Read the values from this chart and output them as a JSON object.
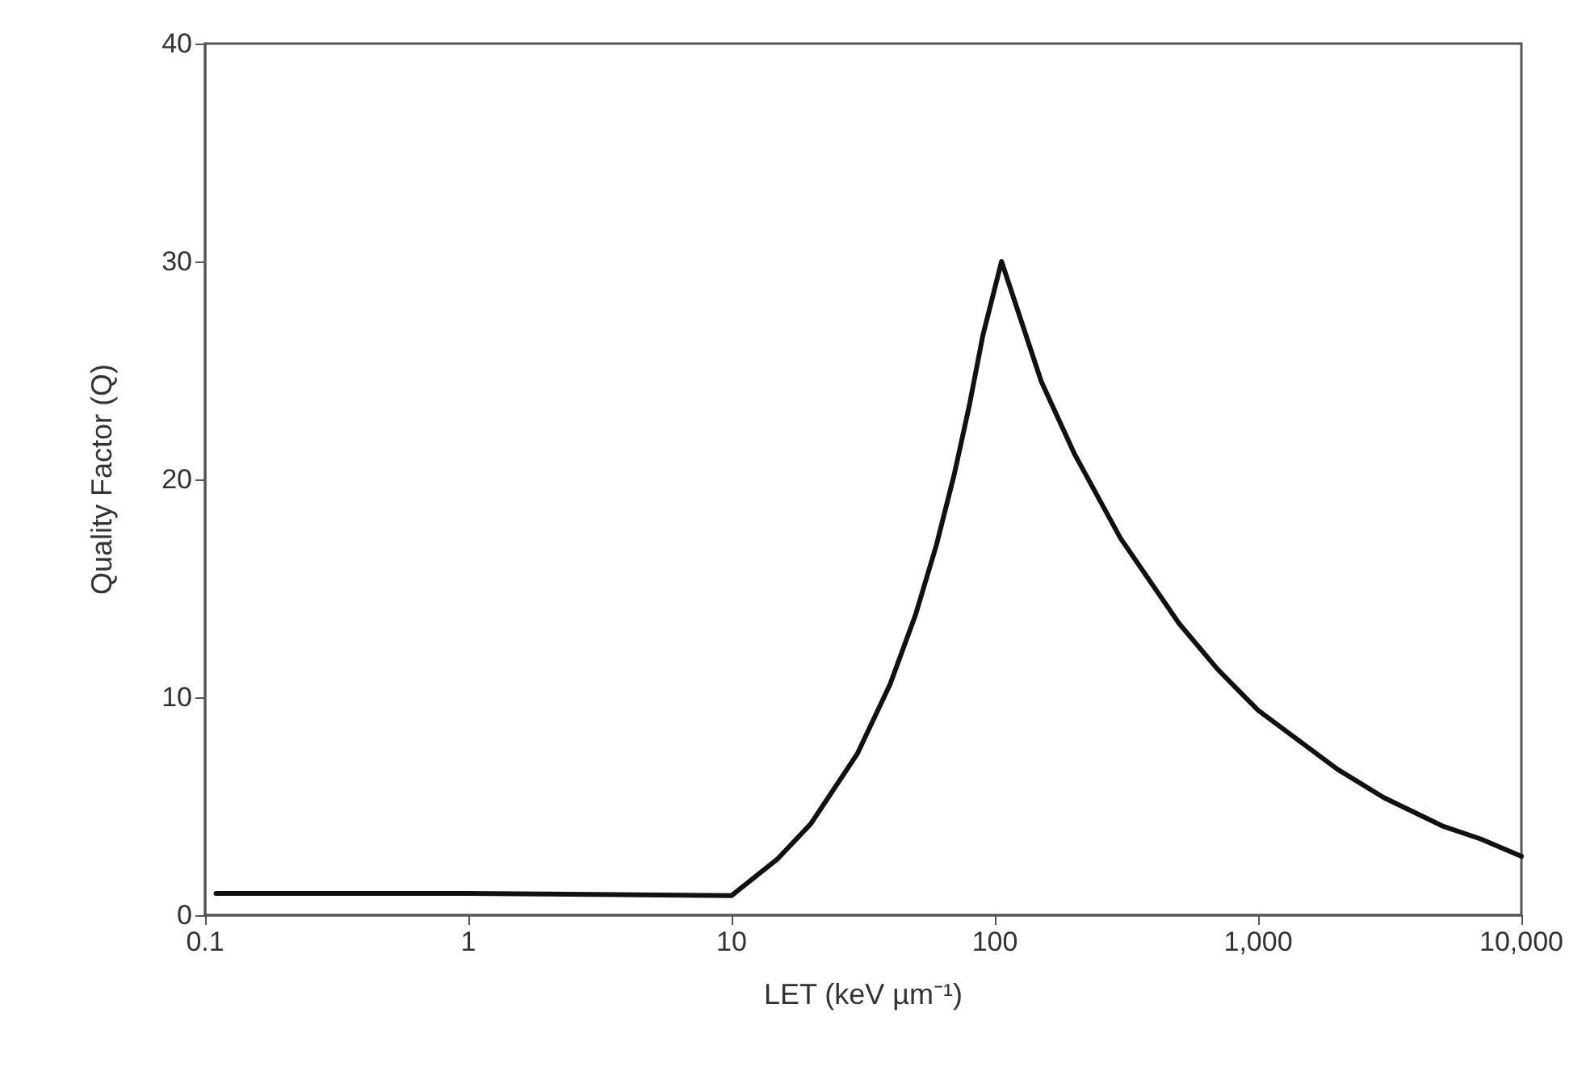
{
  "chart_data": {
    "type": "line",
    "xlabel": "LET (keV µm⁻¹)",
    "ylabel": "Quality Factor (Q)",
    "series": [
      {
        "color": "#111111",
        "x": [
          0.11,
          1,
          10,
          15,
          20,
          30,
          40,
          50,
          60,
          70,
          80,
          90,
          106,
          150,
          200,
          300,
          500,
          700,
          1000,
          2000,
          3000,
          5000,
          7000,
          10000
        ],
        "values": [
          1,
          1,
          0.9,
          2.6,
          4.2,
          7.4,
          10.6,
          13.8,
          17,
          20.2,
          23.4,
          26.6,
          30,
          24.5,
          21.2,
          17.3,
          13.4,
          11.3,
          9.4,
          6.7,
          5.4,
          4.1,
          3.5,
          2.7
        ]
      }
    ],
    "log": "x",
    "xlim": [
      0.1,
      10000
    ],
    "xticks": [
      0.1,
      1,
      10,
      100,
      {
        "value": 1000,
        "label": "1,000"
      },
      {
        "value": 10000,
        "label": "10,000"
      }
    ],
    "ylim": [
      0,
      40
    ],
    "yticks": [
      0,
      10,
      20,
      30,
      40
    ],
    "grid": false,
    "marker": "none",
    "line_style": "solid"
  }
}
